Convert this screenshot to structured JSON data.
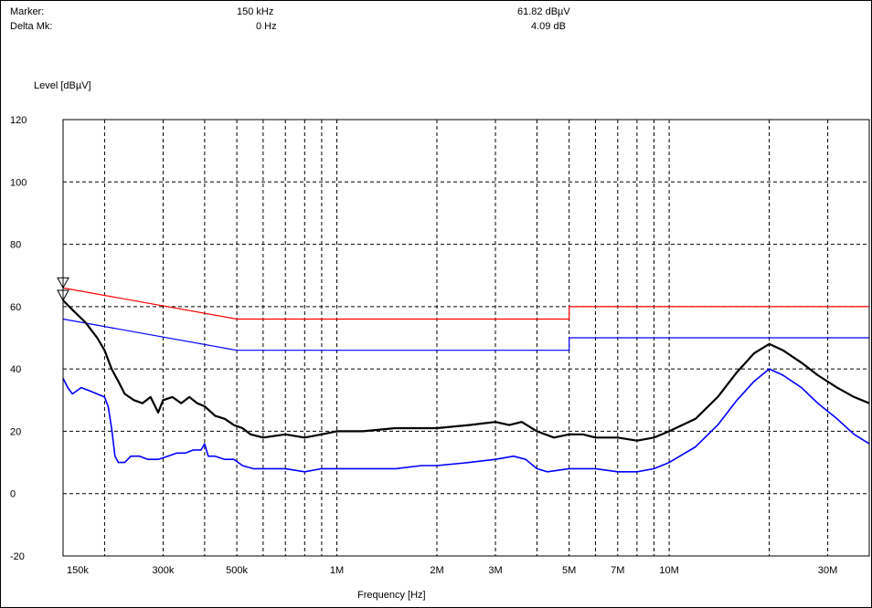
{
  "marker": {
    "label": "Marker:",
    "freq": "150 kHz",
    "level": "61.82 dBµV",
    "delta_label": "Delta Mk:",
    "delta_freq": "0 Hz",
    "delta_level": "4.09 dB"
  },
  "chart_data": {
    "type": "line",
    "title": "",
    "ylabel": "Level [dBµV]",
    "xlabel": "Frequency [Hz]",
    "x_scale": "log",
    "xlim": [
      150000,
      40000000
    ],
    "ylim": [
      -20,
      120
    ],
    "grid": true,
    "x_ticks": [
      {
        "value": 150000,
        "label": "150k"
      },
      {
        "value": 300000,
        "label": "300k"
      },
      {
        "value": 500000,
        "label": "500k"
      },
      {
        "value": 1000000,
        "label": "1M"
      },
      {
        "value": 2000000,
        "label": "2M"
      },
      {
        "value": 3000000,
        "label": "3M"
      },
      {
        "value": 5000000,
        "label": "5M"
      },
      {
        "value": 7000000,
        "label": "7M"
      },
      {
        "value": 10000000,
        "label": "10M"
      },
      {
        "value": 30000000,
        "label": "30M"
      }
    ],
    "x_minor_grid": [
      200000,
      400000,
      600000,
      700000,
      800000,
      900000,
      4000000,
      6000000,
      8000000,
      9000000,
      20000000,
      40000000
    ],
    "y_ticks": [
      {
        "value": 120,
        "label": "120"
      },
      {
        "value": 100,
        "label": "100"
      },
      {
        "value": 80,
        "label": "80"
      },
      {
        "value": 60,
        "label": "60"
      },
      {
        "value": 40,
        "label": "40"
      },
      {
        "value": 20,
        "label": "20"
      },
      {
        "value": 0,
        "label": "0"
      },
      {
        "value": -20,
        "label": "-20"
      }
    ],
    "marker_points": [
      {
        "x": 150000,
        "y": 66
      },
      {
        "x": 150000,
        "y": 62
      }
    ],
    "series": [
      {
        "color": "#ff0000",
        "width": 1.2,
        "points": [
          [
            150000,
            66
          ],
          [
            500000,
            56
          ],
          [
            5000000,
            56
          ],
          [
            5000000,
            60
          ],
          [
            40000000,
            60
          ]
        ]
      },
      {
        "color": "#0000ff",
        "width": 1.2,
        "points": [
          [
            150000,
            56
          ],
          [
            500000,
            46
          ],
          [
            5000000,
            46
          ],
          [
            5000000,
            50
          ],
          [
            40000000,
            50
          ]
        ]
      },
      {
        "color": "#000000",
        "width": 2.2,
        "points": [
          [
            150000,
            62
          ],
          [
            160000,
            59
          ],
          [
            175000,
            55
          ],
          [
            190000,
            50
          ],
          [
            200000,
            46
          ],
          [
            210000,
            40
          ],
          [
            220000,
            36
          ],
          [
            230000,
            32
          ],
          [
            245000,
            30
          ],
          [
            260000,
            29
          ],
          [
            275000,
            31
          ],
          [
            290000,
            26
          ],
          [
            300000,
            30
          ],
          [
            320000,
            31
          ],
          [
            340000,
            29
          ],
          [
            360000,
            31
          ],
          [
            380000,
            29
          ],
          [
            400000,
            28
          ],
          [
            430000,
            25
          ],
          [
            460000,
            24
          ],
          [
            490000,
            22
          ],
          [
            520000,
            21
          ],
          [
            550000,
            19
          ],
          [
            600000,
            18
          ],
          [
            700000,
            19
          ],
          [
            800000,
            18
          ],
          [
            900000,
            19
          ],
          [
            1000000,
            20
          ],
          [
            1200000,
            20
          ],
          [
            1500000,
            21
          ],
          [
            1800000,
            21
          ],
          [
            2000000,
            21
          ],
          [
            2500000,
            22
          ],
          [
            3000000,
            23
          ],
          [
            3300000,
            22
          ],
          [
            3600000,
            23
          ],
          [
            4000000,
            20
          ],
          [
            4500000,
            18
          ],
          [
            5000000,
            19
          ],
          [
            5500000,
            19
          ],
          [
            6000000,
            18
          ],
          [
            7000000,
            18
          ],
          [
            8000000,
            17
          ],
          [
            9000000,
            18
          ],
          [
            10000000,
            20
          ],
          [
            12000000,
            24
          ],
          [
            14000000,
            31
          ],
          [
            16000000,
            39
          ],
          [
            18000000,
            45
          ],
          [
            20000000,
            48
          ],
          [
            22000000,
            46
          ],
          [
            25000000,
            42
          ],
          [
            28000000,
            38
          ],
          [
            32000000,
            34
          ],
          [
            36000000,
            31
          ],
          [
            40000000,
            29
          ]
        ]
      },
      {
        "color": "#0000ff",
        "width": 1.6,
        "points": [
          [
            150000,
            37
          ],
          [
            155000,
            34
          ],
          [
            160000,
            32
          ],
          [
            170000,
            34
          ],
          [
            180000,
            33
          ],
          [
            190000,
            32
          ],
          [
            200000,
            31
          ],
          [
            205000,
            28
          ],
          [
            210000,
            21
          ],
          [
            215000,
            12
          ],
          [
            220000,
            10
          ],
          [
            230000,
            10
          ],
          [
            240000,
            12
          ],
          [
            255000,
            12
          ],
          [
            270000,
            11
          ],
          [
            290000,
            11
          ],
          [
            310000,
            12
          ],
          [
            330000,
            13
          ],
          [
            350000,
            13
          ],
          [
            370000,
            14
          ],
          [
            390000,
            14
          ],
          [
            400000,
            16
          ],
          [
            410000,
            12
          ],
          [
            430000,
            12
          ],
          [
            460000,
            11
          ],
          [
            490000,
            11
          ],
          [
            520000,
            9
          ],
          [
            560000,
            8
          ],
          [
            700000,
            8
          ],
          [
            800000,
            7
          ],
          [
            900000,
            8
          ],
          [
            1000000,
            8
          ],
          [
            1200000,
            8
          ],
          [
            1500000,
            8
          ],
          [
            1800000,
            9
          ],
          [
            2000000,
            9
          ],
          [
            2500000,
            10
          ],
          [
            3000000,
            11
          ],
          [
            3400000,
            12
          ],
          [
            3700000,
            11
          ],
          [
            4000000,
            8
          ],
          [
            4300000,
            7
          ],
          [
            5000000,
            8
          ],
          [
            6000000,
            8
          ],
          [
            7000000,
            7
          ],
          [
            8000000,
            7
          ],
          [
            9000000,
            8
          ],
          [
            10000000,
            10
          ],
          [
            12000000,
            15
          ],
          [
            14000000,
            22
          ],
          [
            16000000,
            30
          ],
          [
            18000000,
            36
          ],
          [
            20000000,
            40
          ],
          [
            22000000,
            38
          ],
          [
            25000000,
            34
          ],
          [
            28000000,
            29
          ],
          [
            32000000,
            24
          ],
          [
            36000000,
            19
          ],
          [
            40000000,
            16
          ]
        ]
      }
    ]
  }
}
